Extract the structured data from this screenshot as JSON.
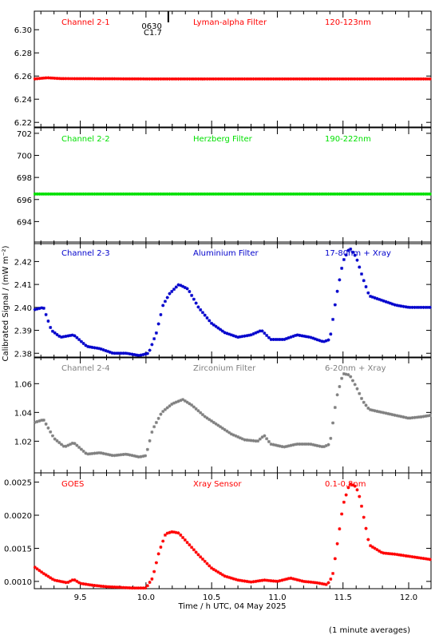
{
  "chart_data": {
    "type": "scatter",
    "xlabel": "Time / h UTC, 04 May 2025",
    "ylabel": "Calibrated Signal / (mW m⁻²)",
    "footnote": "(1 minute averages)",
    "xlim": [
      9.15,
      12.17
    ],
    "xticks": [
      "9.5",
      "10.0",
      "10.5",
      "11.0",
      "11.5",
      "12.0"
    ],
    "event_marker": {
      "x": 10.17,
      "labels": [
        "0630",
        "C1.7"
      ]
    },
    "panels": [
      {
        "channel": "Channel 2-1",
        "filter": "Lyman-alpha Filter",
        "band": "120-123nm",
        "color": "#ff0000",
        "ylim": [
          6.216,
          6.316
        ],
        "yticks": [
          "6.22",
          "6.24",
          "6.26",
          "6.28",
          "6.30"
        ],
        "series": {
          "x": [
            9.15,
            9.25,
            9.35,
            10.0,
            10.5,
            11.0,
            11.5,
            12.0,
            12.17
          ],
          "y": [
            6.2575,
            6.2585,
            6.2578,
            6.2575,
            6.2575,
            6.2575,
            6.2575,
            6.2575,
            6.2575
          ]
        }
      },
      {
        "channel": "Channel 2-2",
        "filter": "Herzberg Filter",
        "band": "190-222nm",
        "color": "#00e000",
        "ylim": [
          692.0,
          702.5
        ],
        "yticks": [
          "694",
          "696",
          "698",
          "700",
          "702"
        ],
        "series": {
          "x": [
            9.15,
            9.5,
            10.0,
            10.5,
            11.0,
            11.5,
            12.0,
            12.17
          ],
          "y": [
            696.5,
            696.5,
            696.5,
            696.5,
            696.5,
            696.5,
            696.5,
            696.5
          ]
        }
      },
      {
        "channel": "Channel 2-3",
        "filter": "Aluminium Filter",
        "band": "17-80nm + Xray",
        "color": "#0000cc",
        "ylim": [
          2.378,
          2.4285
        ],
        "yticks": [
          "2.38",
          "2.39",
          "2.40",
          "2.41",
          "2.42"
        ],
        "series": {
          "x": [
            9.15,
            9.22,
            9.28,
            9.35,
            9.45,
            9.55,
            9.65,
            9.75,
            9.85,
            9.95,
            10.02,
            10.08,
            10.13,
            10.18,
            10.25,
            10.32,
            10.4,
            10.5,
            10.6,
            10.7,
            10.8,
            10.88,
            10.95,
            11.05,
            11.15,
            11.25,
            11.35,
            11.4,
            11.45,
            11.5,
            11.55,
            11.6,
            11.65,
            11.7,
            11.8,
            11.9,
            12.0,
            12.17
          ],
          "y": [
            2.399,
            2.4,
            2.39,
            2.387,
            2.388,
            2.383,
            2.382,
            2.38,
            2.38,
            2.379,
            2.38,
            2.389,
            2.401,
            2.406,
            2.41,
            2.408,
            2.4,
            2.393,
            2.389,
            2.387,
            2.388,
            2.39,
            2.386,
            2.386,
            2.388,
            2.387,
            2.385,
            2.386,
            2.405,
            2.42,
            2.426,
            2.422,
            2.413,
            2.405,
            2.403,
            2.401,
            2.4,
            2.4
          ]
        }
      },
      {
        "channel": "Channel 2-4",
        "filter": "Zirconium Filter",
        "band": "6-20nm + Xray",
        "color": "#808080",
        "ylim": [
          0.998,
          1.0785
        ],
        "yticks": [
          "1.02",
          "1.04",
          "1.06"
        ],
        "series": {
          "x": [
            9.15,
            9.22,
            9.3,
            9.38,
            9.45,
            9.55,
            9.65,
            9.75,
            9.85,
            9.95,
            10.0,
            10.05,
            10.12,
            10.2,
            10.28,
            10.35,
            10.45,
            10.55,
            10.65,
            10.75,
            10.85,
            10.9,
            10.95,
            11.05,
            11.15,
            11.25,
            11.35,
            11.4,
            11.45,
            11.5,
            11.55,
            11.6,
            11.65,
            11.7,
            11.8,
            11.9,
            12.0,
            12.1,
            12.17
          ],
          "y": [
            1.033,
            1.035,
            1.022,
            1.016,
            1.019,
            1.011,
            1.012,
            1.01,
            1.011,
            1.009,
            1.01,
            1.028,
            1.04,
            1.046,
            1.049,
            1.045,
            1.037,
            1.031,
            1.025,
            1.021,
            1.02,
            1.024,
            1.018,
            1.016,
            1.018,
            1.018,
            1.016,
            1.018,
            1.05,
            1.067,
            1.066,
            1.058,
            1.048,
            1.042,
            1.04,
            1.038,
            1.036,
            1.037,
            1.038
          ]
        }
      },
      {
        "channel": "GOES",
        "filter": "Xray Sensor",
        "band": "0.1-0.8nm",
        "color": "#ff0000",
        "ylim": [
          0.00089,
          0.00264
        ],
        "yticks": [
          "0.0010",
          "0.0015",
          "0.0020",
          "0.0025"
        ],
        "series": {
          "x": [
            9.15,
            9.22,
            9.3,
            9.4,
            9.45,
            9.5,
            9.6,
            9.7,
            9.8,
            9.9,
            10.0,
            10.05,
            10.1,
            10.15,
            10.2,
            10.25,
            10.3,
            10.4,
            10.5,
            10.6,
            10.7,
            10.8,
            10.9,
            11.0,
            11.1,
            11.2,
            11.3,
            11.38,
            11.42,
            11.45,
            11.5,
            11.55,
            11.6,
            11.63,
            11.66,
            11.7,
            11.8,
            11.9,
            12.0,
            12.17
          ],
          "y": [
            0.00122,
            0.00112,
            0.00102,
            0.00098,
            0.00103,
            0.00097,
            0.00094,
            0.00092,
            0.00091,
            0.0009,
            0.0009,
            0.00105,
            0.00145,
            0.00172,
            0.00175,
            0.00173,
            0.00162,
            0.0014,
            0.0012,
            0.00108,
            0.00102,
            0.00099,
            0.00102,
            0.001,
            0.00105,
            0.001,
            0.00098,
            0.00095,
            0.00108,
            0.00148,
            0.00215,
            0.00248,
            0.00243,
            0.00225,
            0.00195,
            0.00155,
            0.00143,
            0.00141,
            0.00138,
            0.00133
          ]
        }
      }
    ]
  }
}
